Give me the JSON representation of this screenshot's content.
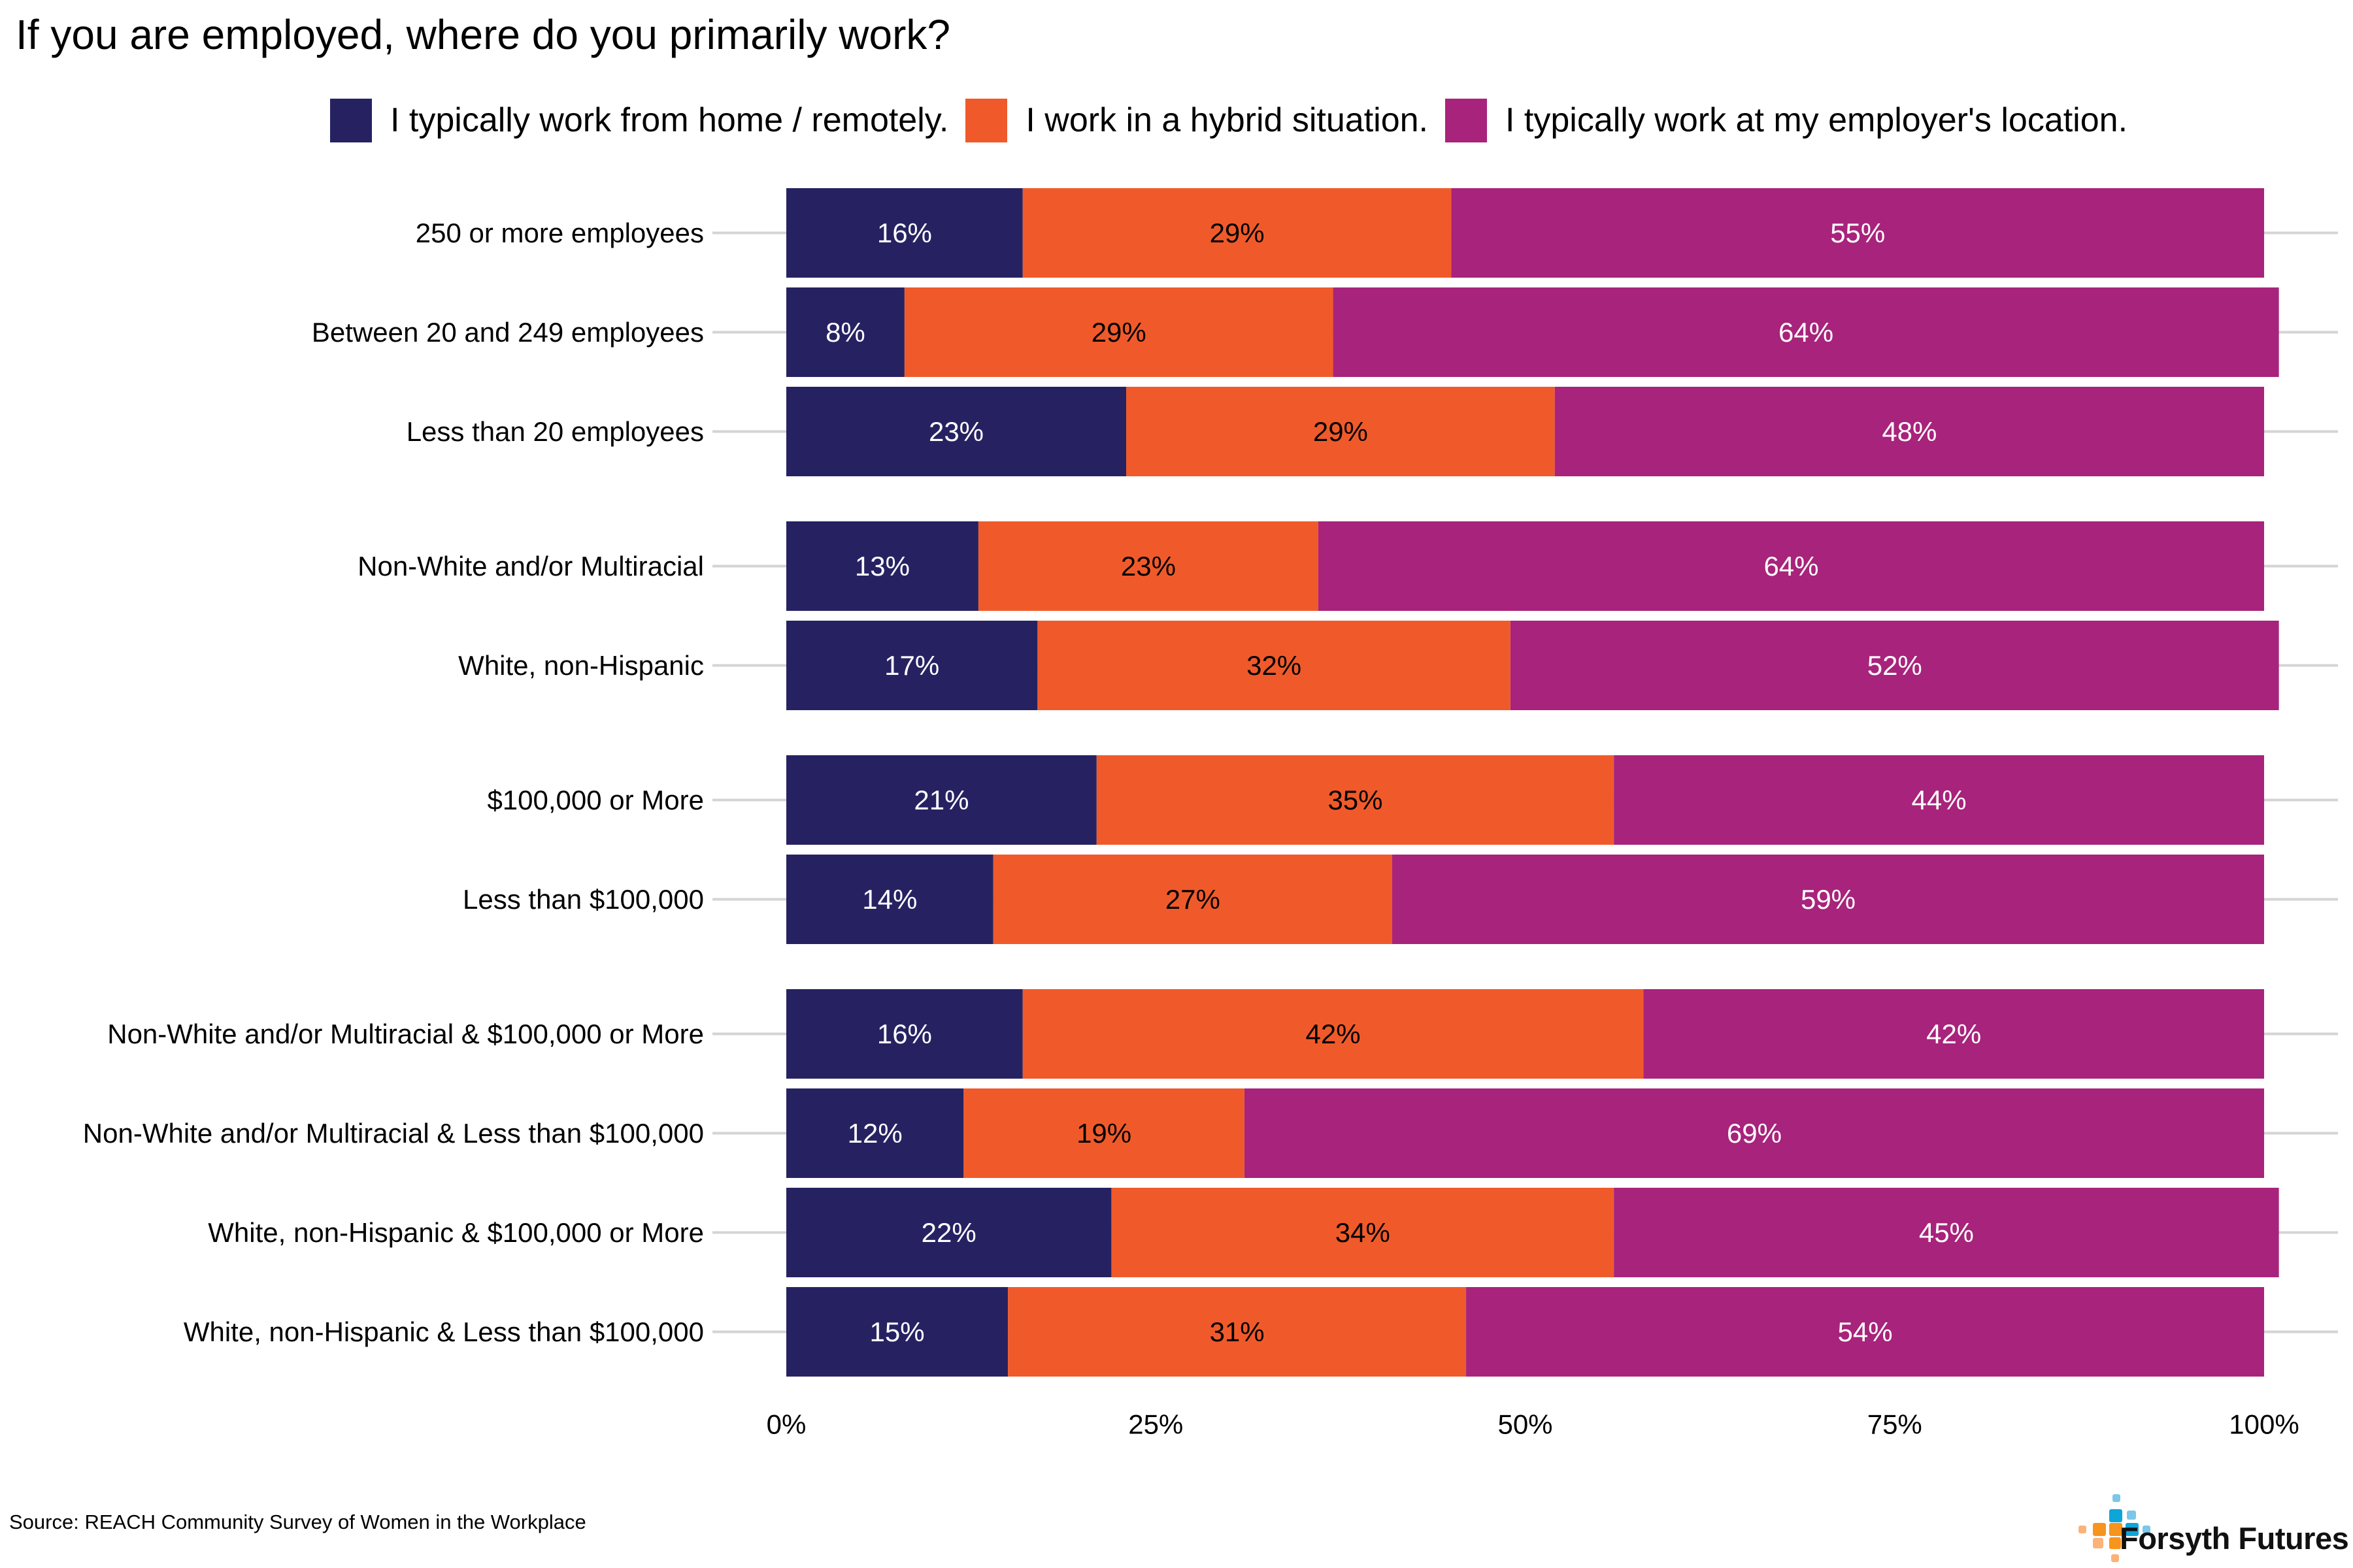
{
  "chart_data": {
    "type": "bar",
    "orientation": "horizontal",
    "stacked": true,
    "title": "If you are employed, where do you primarily work?",
    "xlabel": "",
    "ylabel": "",
    "xlim": [
      0,
      100
    ],
    "x_ticks": [
      0,
      25,
      50,
      75,
      100
    ],
    "x_tick_labels": [
      "0%",
      "25%",
      "50%",
      "75%",
      "100%"
    ],
    "grid": "horizontal gridlines at each category",
    "legend_position": "top",
    "categories": [
      "250 or more employees",
      "Between 20 and 249 employees",
      "Less than 20 employees",
      "Non-White and/or Multiracial",
      "White, non-Hispanic",
      "$100,000 or More",
      "Less than $100,000",
      "Non-White and/or Multiracial & $100,000 or More",
      "Non-White and/or Multiracial & Less than $100,000",
      "White, non-Hispanic & $100,000 or More",
      "White, non-Hispanic & Less than $100,000"
    ],
    "groups": [
      [
        0,
        1,
        2
      ],
      [
        3,
        4
      ],
      [
        5,
        6
      ],
      [
        7,
        8,
        9,
        10
      ]
    ],
    "series": [
      {
        "name": "I typically work from home / remotely.",
        "color": "#262262",
        "label_color": "#ffffff",
        "values": [
          16,
          8,
          23,
          13,
          17,
          21,
          14,
          16,
          12,
          22,
          15
        ]
      },
      {
        "name": "I work in a hybrid situation.",
        "color": "#f05a2b",
        "label_color": "#000000",
        "values": [
          29,
          29,
          29,
          23,
          32,
          35,
          27,
          42,
          19,
          34,
          31
        ]
      },
      {
        "name": "I typically work at my employer's location.",
        "color": "#a8237b",
        "label_color": "#ffffff",
        "values": [
          55,
          64,
          48,
          64,
          52,
          44,
          59,
          42,
          69,
          45,
          54
        ]
      }
    ],
    "value_suffix": "%"
  },
  "footer": {
    "source": "Source: REACH Community Survey of Women in the Workplace",
    "logo_text": "Forsyth Futures"
  },
  "colors": {
    "gridline": "#d4d4d2",
    "logo_orange": "#f7941d",
    "logo_orange_light": "#fbb37a",
    "logo_blue": "#0ea5d9",
    "logo_blue_light": "#7cc7e8"
  }
}
